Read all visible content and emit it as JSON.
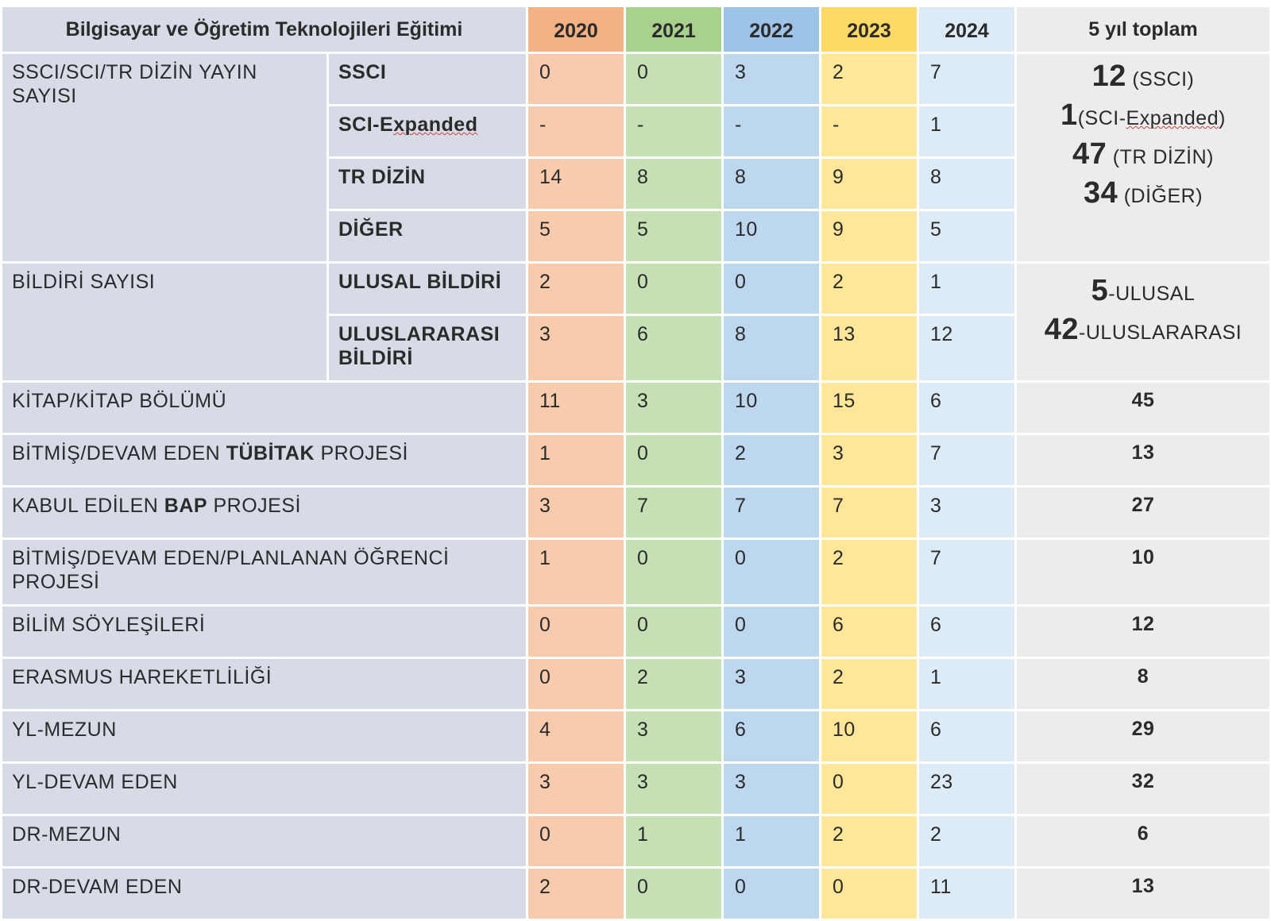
{
  "table": {
    "title": "Bilgisayar ve Öğretim Teknolojileri Eğitimi",
    "years": [
      "2020",
      "2021",
      "2022",
      "2023",
      "2024"
    ],
    "total_header": "5 yıl toplam",
    "colors": {
      "header_years": [
        "#f4b183",
        "#a9d18e",
        "#9dc3e6",
        "#ffd966",
        "#ddebf7"
      ],
      "cells": [
        "#f8cbad",
        "#c5e0b4",
        "#bdd7ee",
        "#ffe699",
        "#ddebf7"
      ],
      "label_bg": "#d6dbe5",
      "total_bg": "#ececed"
    },
    "groups": {
      "publications": {
        "label": "SSCI/SCI/TR DİZİN YAYIN SAYISI",
        "rows": [
          {
            "sub": "SSCI",
            "values": [
              "0",
              "0",
              "3",
              "2",
              "7"
            ]
          },
          {
            "sub_a": "SCI-E",
            "sub_b": "xpanded",
            "values": [
              "-",
              "-",
              "-",
              "-",
              "1"
            ]
          },
          {
            "sub": "TR DİZİN",
            "values": [
              "14",
              "8",
              "8",
              "9",
              "8"
            ]
          },
          {
            "sub": "DİĞER",
            "values": [
              "5",
              "5",
              "10",
              "9",
              "5"
            ]
          }
        ],
        "totals": [
          {
            "num": "12",
            "txt": " (SSCI)"
          },
          {
            "num": "1",
            "txt_a": "(SCI-",
            "txt_b": "Expanded",
            "txt_c": ")"
          },
          {
            "num": "47",
            "txt": " (TR DİZİN)"
          },
          {
            "num": "34",
            "txt": " (DİĞER)"
          }
        ]
      },
      "papers": {
        "label": "BİLDİRİ SAYISI",
        "rows": [
          {
            "sub": "ULUSAL BİLDİRİ",
            "values": [
              "2",
              "0",
              "0",
              "2",
              "1"
            ]
          },
          {
            "sub_a": "ULUSLARARASI",
            "sub_b": "BİLDİRİ",
            "values": [
              "3",
              "6",
              "8",
              "13",
              "12"
            ]
          }
        ],
        "totals": [
          {
            "num": "5",
            "txt": "-ULUSAL"
          },
          {
            "num": "42",
            "txt": "-ULUSLARARASI"
          }
        ]
      }
    },
    "rows": [
      {
        "label": "KİTAP/KİTAP BÖLÜMÜ",
        "values": [
          "11",
          "3",
          "10",
          "15",
          "6"
        ],
        "total": "45"
      },
      {
        "label_a": "BİTMİŞ/DEVAM EDEN ",
        "label_bold": "TÜBİTAK",
        "label_b": " PROJESİ",
        "values": [
          "1",
          "0",
          "2",
          "3",
          "7"
        ],
        "total": "13"
      },
      {
        "label_a": "KABUL EDİLEN ",
        "label_bold": "BAP",
        "label_b": " PROJESİ",
        "values": [
          "3",
          "7",
          "7",
          "7",
          "3"
        ],
        "total": "27"
      },
      {
        "label": "BİTMİŞ/DEVAM EDEN/PLANLANAN ÖĞRENCİ PROJESİ",
        "values": [
          "1",
          "0",
          "0",
          "2",
          "7"
        ],
        "total": "10"
      },
      {
        "label": "BİLİM SÖYLEŞİLERİ",
        "values": [
          "0",
          "0",
          "0",
          "6",
          "6"
        ],
        "total": "12"
      },
      {
        "label": "ERASMUS HAREKETLİLİĞİ",
        "values": [
          "0",
          "2",
          "3",
          "2",
          "1"
        ],
        "total": "8"
      },
      {
        "label": "YL-MEZUN",
        "values": [
          "4",
          "3",
          "6",
          "10",
          "6"
        ],
        "total": "29"
      },
      {
        "label": "YL-DEVAM EDEN",
        "values": [
          "3",
          "3",
          "3",
          "0",
          "23"
        ],
        "total": "32"
      },
      {
        "label": "DR-MEZUN",
        "values": [
          "0",
          "1",
          "1",
          "2",
          "2"
        ],
        "total": "6"
      },
      {
        "label": "DR-DEVAM EDEN",
        "values": [
          "2",
          "0",
          "0",
          "0",
          "11"
        ],
        "total": "13"
      }
    ]
  }
}
